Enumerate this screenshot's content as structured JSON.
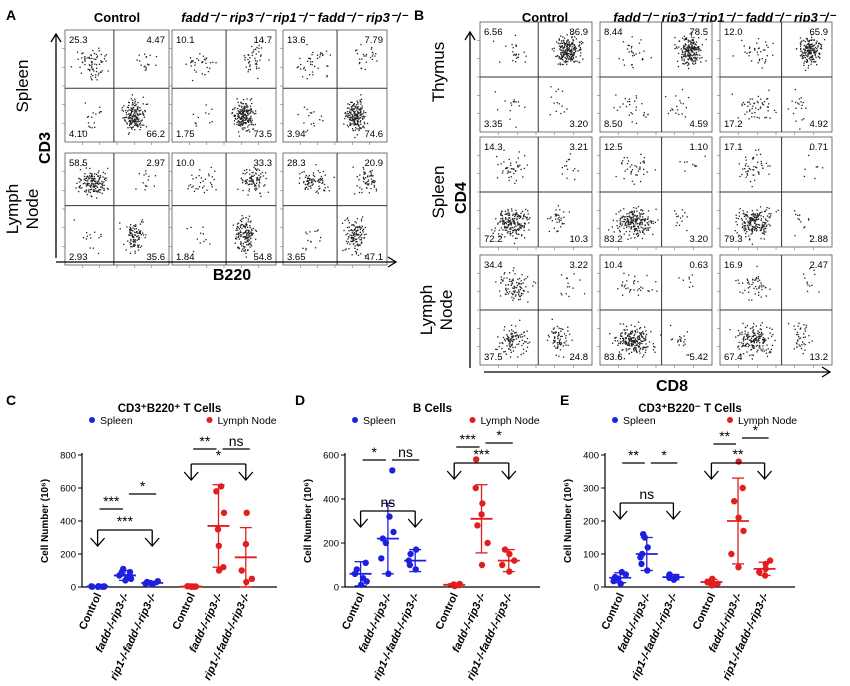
{
  "figure": {
    "panel_letters": [
      "A",
      "B",
      "C",
      "D",
      "E"
    ],
    "genotype_titles": {
      "control": "Control",
      "fadd_rip3": "fadd⁻/⁻ rip3⁻/⁻",
      "rip1_fadd_rip3": "rip1⁻/⁻ fadd⁻/⁻ rip3⁻/⁻"
    },
    "colors": {
      "spleen": "#1f1fe0",
      "lymph": "#e01f1f",
      "axis": "#000000"
    }
  },
  "panel_a": {
    "row_labels": [
      "Spleen",
      "Lymph\nNode"
    ],
    "y_axis": "CD3",
    "x_axis": "B220"
  },
  "panel_b": {
    "row_labels": [
      "Thymus",
      "Spleen",
      "Lymph\nNode"
    ],
    "y_axis": "CD4",
    "x_axis": "CD8"
  },
  "chart_data": [
    {
      "type": "flow-quadrant",
      "panel": "A",
      "columns": [
        "Control",
        "fadd-/-rip3-/-",
        "rip1-/-fadd-/-rip3-/-"
      ],
      "rows": [
        "Spleen",
        "Lymph Node"
      ],
      "quadrant_order": [
        "upper-left",
        "upper-right",
        "lower-left",
        "lower-right"
      ],
      "values": [
        [
          [
            "25.3",
            "4.47",
            "4.10",
            "66.2"
          ],
          [
            "10.1",
            "14.7",
            "1.75",
            "73.5"
          ],
          [
            "13.6",
            "7.79",
            "3.94",
            "74.6"
          ]
        ],
        [
          [
            "58.5",
            "2.97",
            "2.93",
            "35.6"
          ],
          [
            "10.0",
            "33.3",
            "1.84",
            "54.8"
          ],
          [
            "28.3",
            "20.9",
            "3.65",
            "47.1"
          ]
        ]
      ],
      "xlabel": "B220",
      "ylabel": "CD3"
    },
    {
      "type": "flow-quadrant",
      "panel": "B",
      "columns": [
        "Control",
        "fadd-/-rip3-/-",
        "rip1-/-fadd-/-rip3-/-"
      ],
      "rows": [
        "Thymus",
        "Spleen",
        "Lymph Node"
      ],
      "quadrant_order": [
        "upper-left",
        "upper-right",
        "lower-left",
        "lower-right"
      ],
      "values": [
        [
          [
            "6.56",
            "86.9",
            "3.35",
            "3.20"
          ],
          [
            "8.44",
            "78.5",
            "8.50",
            "4.59"
          ],
          [
            "12.0",
            "65.9",
            "17.2",
            "4.92"
          ]
        ],
        [
          [
            "14.3",
            "3.21",
            "72.2",
            "10.3"
          ],
          [
            "12.5",
            "1.10",
            "83.2",
            "3.20"
          ],
          [
            "17.1",
            "0.71",
            "79.3",
            "2.88"
          ]
        ],
        [
          [
            "34.4",
            "3.22",
            "37.5",
            "24.8"
          ],
          [
            "10.4",
            "0.63",
            "83.6",
            "5.42"
          ],
          [
            "16.9",
            "2.47",
            "67.4",
            "13.2"
          ]
        ]
      ],
      "xlabel": "CD8",
      "ylabel": "CD4"
    },
    {
      "type": "scatter",
      "panel": "C",
      "title": "CD3⁺B220⁺ T Cells",
      "ylabel": "Cell Number (10⁶)",
      "ylim": [
        0,
        800
      ],
      "yticks": [
        "0",
        "200",
        "400",
        "600",
        "800"
      ],
      "legend": [
        "Spleen",
        "Lymph Node"
      ],
      "categories": [
        "Control",
        "fadd-/-rip3-/-",
        "rip1-/-fadd-/-rip3-/-",
        "Control",
        "fadd-/-rip3-/-",
        "rip1-/-fadd-/-rip3-/-"
      ],
      "series": [
        {
          "name": "Spleen",
          "groups": [
            {
              "mean": 3,
              "sd": 2,
              "points": [
                1,
                2,
                3,
                4,
                5,
                2,
                3
              ]
            },
            {
              "mean": 70,
              "sd": 30,
              "points": [
                40,
                50,
                60,
                70,
                80,
                90,
                110
              ]
            },
            {
              "mean": 25,
              "sd": 10,
              "points": [
                15,
                20,
                25,
                30,
                35
              ]
            }
          ]
        },
        {
          "name": "Lymph Node",
          "groups": [
            {
              "mean": 3,
              "sd": 2,
              "points": [
                1,
                2,
                3,
                4,
                5,
                3
              ]
            },
            {
              "mean": 370,
              "sd": 250,
              "points": [
                100,
                120,
                250,
                350,
                450,
                580,
                610
              ]
            },
            {
              "mean": 180,
              "sd": 180,
              "points": [
                30,
                50,
                100,
                260,
                450
              ]
            }
          ]
        }
      ],
      "significance": [
        "***",
        "*",
        "***",
        "**",
        "ns",
        "*"
      ]
    },
    {
      "type": "scatter",
      "panel": "D",
      "title": "B Cells",
      "ylabel": "Cell Number (10⁶)",
      "ylim": [
        0,
        600
      ],
      "yticks": [
        "0",
        "200",
        "400",
        "600"
      ],
      "legend": [
        "Spleen",
        "Lymph Node"
      ],
      "categories": [
        "Control",
        "fadd-/-rip3-/-",
        "rip1-/-fadd-/-rip3-/-",
        "Control",
        "fadd-/-rip3-/-",
        "rip1-/-fadd-/-rip3-/-"
      ],
      "series": [
        {
          "name": "Spleen",
          "groups": [
            {
              "mean": 60,
              "sd": 55,
              "points": [
                10,
                25,
                40,
                60,
                80,
                110
              ]
            },
            {
              "mean": 220,
              "sd": 160,
              "points": [
                60,
                130,
                200,
                220,
                250,
                320,
                530
              ]
            },
            {
              "mean": 120,
              "sd": 50,
              "points": [
                80,
                100,
                120,
                150,
                170
              ]
            }
          ]
        },
        {
          "name": "Lymph Node",
          "groups": [
            {
              "mean": 10,
              "sd": 5,
              "points": [
                4,
                8,
                10,
                12,
                14
              ]
            },
            {
              "mean": 310,
              "sd": 155,
              "points": [
                100,
                200,
                280,
                330,
                380,
                450,
                580
              ]
            },
            {
              "mean": 120,
              "sd": 50,
              "points": [
                70,
                100,
                120,
                150,
                170
              ]
            }
          ]
        }
      ],
      "significance": [
        "*",
        "ns",
        "ns",
        "***",
        "*",
        "***"
      ]
    },
    {
      "type": "scatter",
      "panel": "E",
      "title": "CD3⁺B220⁻ T Cells",
      "ylabel": "Cell Number (10⁶)",
      "ylim": [
        0,
        400
      ],
      "yticks": [
        "0",
        "100",
        "200",
        "300",
        "400"
      ],
      "legend": [
        "Spleen",
        "Lymph Node"
      ],
      "categories": [
        "Control",
        "fadd-/-rip3-/-",
        "rip1-/-fadd-/-rip3-/-",
        "Control",
        "fadd-/-rip3-/-",
        "rip1-/-fadd-/-rip3-/-"
      ],
      "series": [
        {
          "name": "Spleen",
          "groups": [
            {
              "mean": 28,
              "sd": 15,
              "points": [
                10,
                18,
                25,
                30,
                38,
                45
              ]
            },
            {
              "mean": 100,
              "sd": 50,
              "points": [
                50,
                70,
                90,
                100,
                120,
                150,
                160
              ]
            },
            {
              "mean": 30,
              "sd": 8,
              "points": [
                22,
                28,
                30,
                35,
                38
              ]
            }
          ]
        },
        {
          "name": "Lymph Node",
          "groups": [
            {
              "mean": 15,
              "sd": 8,
              "points": [
                5,
                10,
                15,
                20,
                25
              ]
            },
            {
              "mean": 200,
              "sd": 130,
              "points": [
                60,
                100,
                170,
                210,
                260,
                300,
                380
              ]
            },
            {
              "mean": 55,
              "sd": 20,
              "points": [
                35,
                45,
                55,
                70,
                80
              ]
            }
          ]
        }
      ],
      "significance": [
        "**",
        "*",
        "ns",
        "**",
        "*",
        "**"
      ]
    }
  ]
}
